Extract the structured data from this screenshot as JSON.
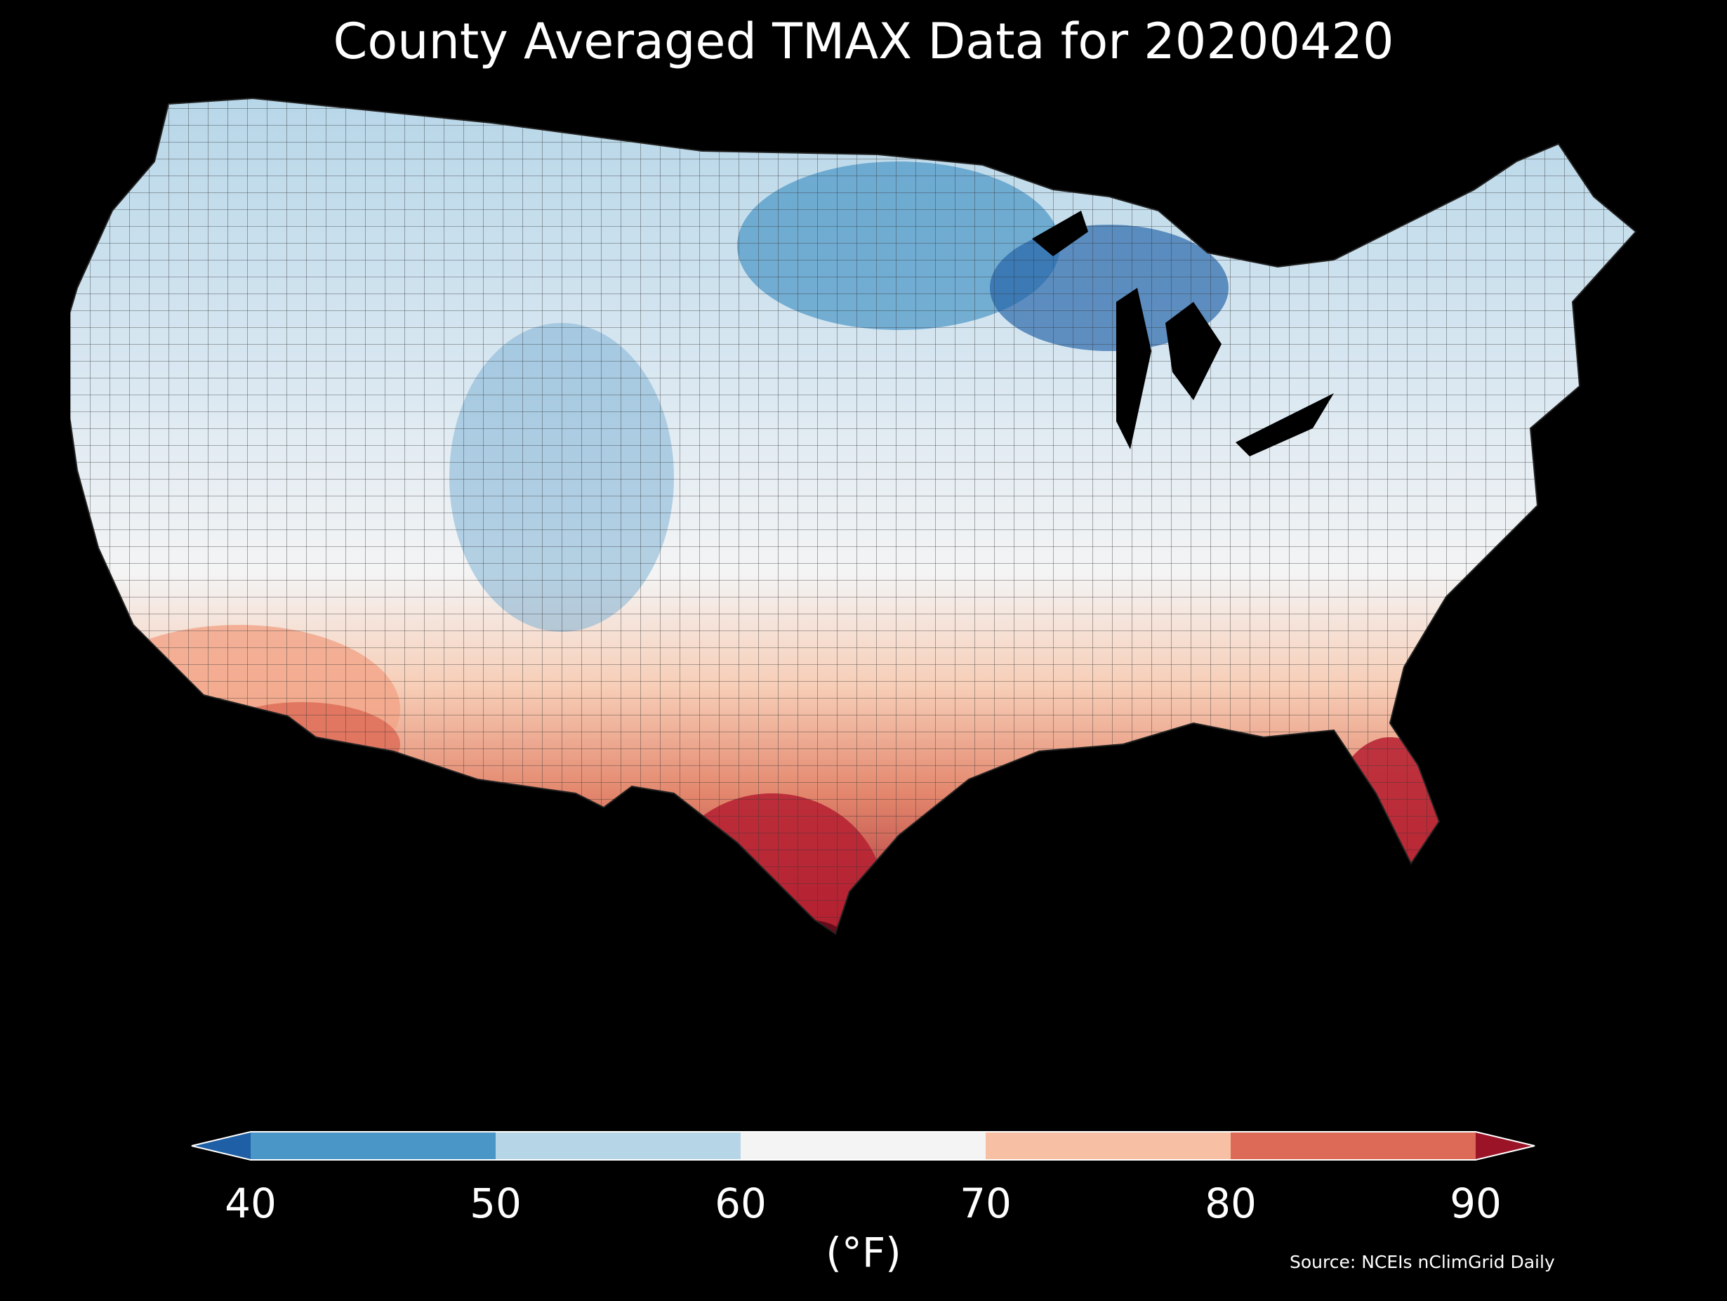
{
  "title": "County Averaged TMAX Data for 20200420",
  "colorbar": {
    "ticks": [
      "40",
      "50",
      "60",
      "70",
      "80",
      "90"
    ],
    "units": "(°F)",
    "bins": [
      {
        "range": "<40",
        "color": "#1f5fa6"
      },
      {
        "range": "40-50",
        "color": "#4a96c6"
      },
      {
        "range": "50-60",
        "color": "#b6d6e8"
      },
      {
        "range": "60-70",
        "color": "#f4f4f4"
      },
      {
        "range": "70-80",
        "color": "#f7bfa3"
      },
      {
        "range": "80-90",
        "color": "#dc6a56"
      },
      {
        "range": ">90",
        "color": "#9b1327"
      }
    ]
  },
  "source": "Source: NCEIs nClimGrid Daily"
}
